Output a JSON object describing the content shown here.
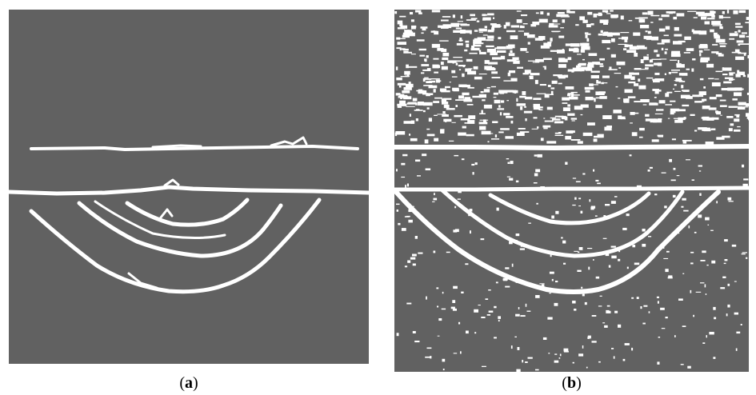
{
  "panels": [
    {
      "id": "a",
      "caption_open": "(",
      "caption_letter": "a",
      "caption_close": ")"
    },
    {
      "id": "b",
      "caption_open": "(",
      "caption_letter": "b",
      "caption_close": ")"
    }
  ],
  "colors": {
    "background": "#616161",
    "foreground": "#ffffff"
  }
}
